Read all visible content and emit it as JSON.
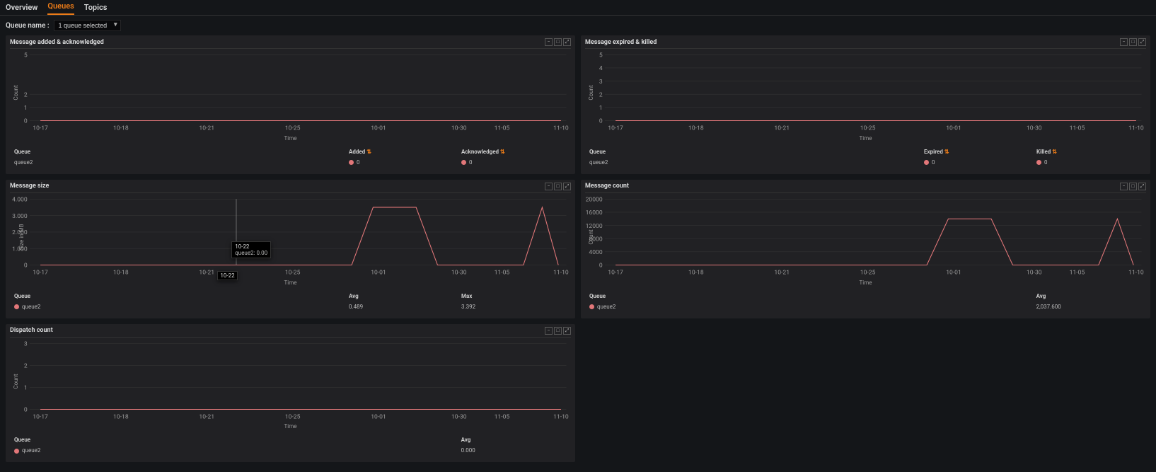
{
  "colors": {
    "bg": "#141619",
    "panel_bg": "#212124",
    "grid": "#333333",
    "text": "#d8d9da",
    "accent": "#eb7b18",
    "series": "#e27779",
    "tooltip_bg": "#000000"
  },
  "nav": {
    "tabs": [
      {
        "label": "Overview",
        "active": false
      },
      {
        "label": "Queues",
        "active": true
      },
      {
        "label": "Topics",
        "active": false
      }
    ]
  },
  "filter": {
    "label": "Queue name :",
    "selected": "1 queue selected"
  },
  "common": {
    "x_axis_title": "Time",
    "x_ticks": [
      "10-17",
      "10-18",
      "10-21",
      "10-25",
      "10-01",
      "10-30",
      "11-05",
      "11-10"
    ],
    "x_positions": [
      0.02,
      0.17,
      0.33,
      0.49,
      0.65,
      0.8,
      0.88,
      0.99
    ]
  },
  "panels": {
    "added_ack": {
      "title": "Message added & acknowledged",
      "y_title": "Count",
      "y_ticks": [
        0,
        1,
        2,
        5
      ],
      "ylim": [
        0,
        5
      ],
      "series": [
        {
          "name": "queue2",
          "type": "flat0",
          "color": "#e27779"
        }
      ],
      "legend": {
        "cols": [
          "Queue",
          "Added",
          "Acknowledged"
        ],
        "sortable_idx": [
          1,
          2
        ],
        "rows": [
          {
            "name": "queue2",
            "vals": [
              "0",
              "0"
            ],
            "dots": [
              true,
              true
            ]
          }
        ]
      }
    },
    "expired_killed": {
      "title": "Message expired & killed",
      "y_title": "Count",
      "y_ticks": [
        0,
        1,
        2,
        3,
        4,
        5
      ],
      "ylim": [
        0,
        5
      ],
      "series": [
        {
          "name": "queue2",
          "type": "flat0",
          "color": "#e27779"
        }
      ],
      "legend": {
        "cols": [
          "Queue",
          "Expired",
          "Killed"
        ],
        "sortable_idx": [
          1,
          2
        ],
        "rows": [
          {
            "name": "queue2",
            "vals": [
              "0",
              "0"
            ],
            "dots": [
              true,
              true
            ]
          }
        ]
      }
    },
    "msg_size": {
      "title": "Message size",
      "y_title": "Size in MB",
      "y_ticks": [
        0,
        1000,
        2000,
        3000,
        4000
      ],
      "y_tick_labels": [
        "0",
        "1.000",
        "2.000",
        "3.000",
        "4.000"
      ],
      "ylim": [
        0,
        4000
      ],
      "series_path": [
        [
          0.02,
          0
        ],
        [
          0.6,
          0
        ],
        [
          0.64,
          3500
        ],
        [
          0.72,
          3500
        ],
        [
          0.76,
          0
        ],
        [
          0.92,
          0
        ],
        [
          0.955,
          3500
        ],
        [
          0.985,
          0
        ]
      ],
      "cursor": {
        "x": 0.385,
        "time_label": "10-22",
        "value_label": "queue2: 0.00",
        "header": "10-22"
      },
      "legend": {
        "cols": [
          "Queue",
          "Avg",
          "Max"
        ],
        "sortable_idx": [],
        "rows": [
          {
            "name": "queue2",
            "vals": [
              "0.489",
              "3.392"
            ],
            "dots": [
              false,
              false
            ],
            "name_dot": true
          }
        ]
      }
    },
    "msg_count": {
      "title": "Message count",
      "y_title": "Count",
      "y_ticks": [
        0,
        4000,
        8000,
        12000,
        16000,
        20000
      ],
      "y_tick_labels": [
        "0",
        "4000",
        "8000",
        "12000",
        "16000",
        "20000"
      ],
      "ylim": [
        0,
        20000
      ],
      "series_path": [
        [
          0.02,
          0
        ],
        [
          0.6,
          0
        ],
        [
          0.64,
          14000
        ],
        [
          0.72,
          14000
        ],
        [
          0.76,
          0
        ],
        [
          0.92,
          0
        ],
        [
          0.955,
          14000
        ],
        [
          0.985,
          0
        ]
      ],
      "legend": {
        "cols": [
          "Queue",
          "Avg"
        ],
        "sortable_idx": [],
        "rows": [
          {
            "name": "queue2",
            "vals": [
              "2,037.600"
            ],
            "dots": [
              false
            ],
            "name_dot": true
          }
        ]
      }
    },
    "dispatch": {
      "title": "Dispatch count",
      "y_title": "Count",
      "y_ticks": [
        0,
        1,
        2,
        3
      ],
      "ylim": [
        0,
        3
      ],
      "series": [
        {
          "name": "queue2",
          "type": "flat0",
          "color": "#e27779"
        }
      ],
      "legend": {
        "cols": [
          "Queue",
          "Avg"
        ],
        "sortable_idx": [],
        "rows": [
          {
            "name": "queue2",
            "vals": [
              "0.000"
            ],
            "dots": [
              false
            ],
            "name_dot": true
          }
        ]
      }
    }
  }
}
